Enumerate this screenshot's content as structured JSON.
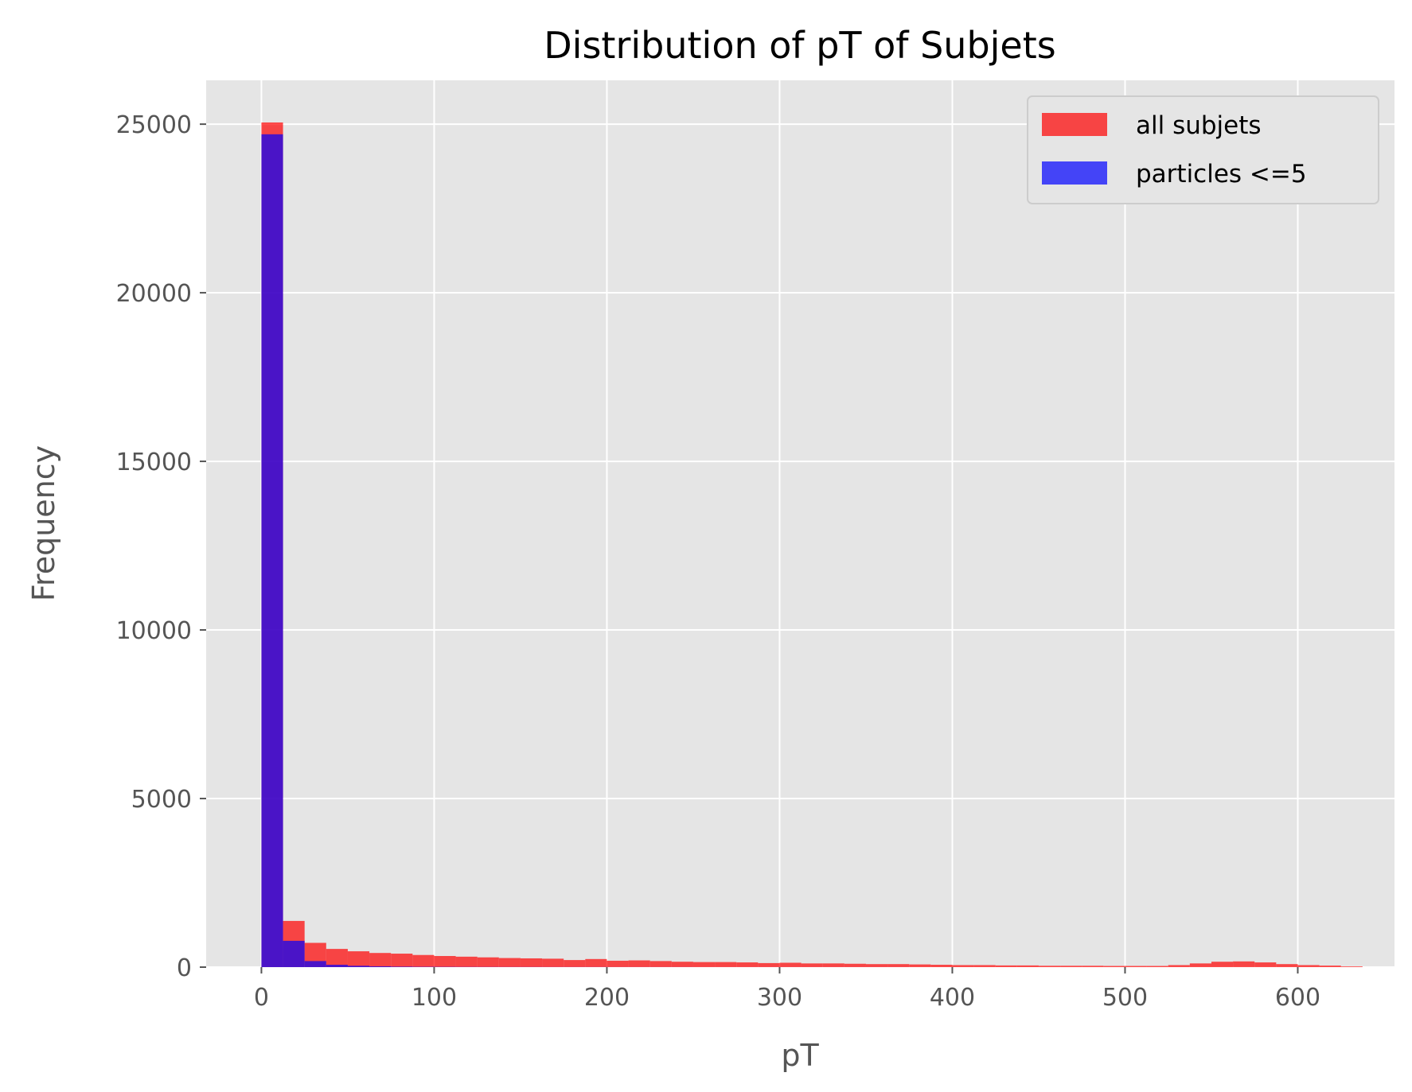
{
  "chart_data": {
    "type": "bar",
    "title": "Distribution of pT of Subjets",
    "xlabel": "pT",
    "ylabel": "Frequency",
    "xlim": [
      -32,
      656
    ],
    "ylim": [
      0,
      26300
    ],
    "xticks": [
      0,
      100,
      200,
      300,
      400,
      500,
      600
    ],
    "yticks": [
      0,
      5000,
      10000,
      15000,
      20000,
      25000
    ],
    "grid": true,
    "legend_position": "top-right",
    "bin_width": 12.5,
    "x": [
      0,
      12.5,
      25,
      37.5,
      50,
      62.5,
      75,
      87.5,
      100,
      112.5,
      125,
      137.5,
      150,
      162.5,
      175,
      187.5,
      200,
      212.5,
      225,
      237.5,
      250,
      262.5,
      275,
      287.5,
      300,
      312.5,
      325,
      337.5,
      350,
      362.5,
      375,
      387.5,
      400,
      412.5,
      425,
      437.5,
      450,
      462.5,
      475,
      487.5,
      500,
      512.5,
      525,
      537.5,
      550,
      562.5,
      575,
      587.5,
      600,
      612.5,
      625
    ],
    "series": [
      {
        "name": "all subjets",
        "color": "#ff0000",
        "values": [
          25050,
          1370,
          720,
          540,
          470,
          420,
          400,
          360,
          330,
          310,
          290,
          270,
          260,
          250,
          210,
          240,
          190,
          200,
          180,
          160,
          150,
          150,
          140,
          120,
          130,
          110,
          110,
          100,
          90,
          90,
          80,
          70,
          60,
          60,
          50,
          50,
          40,
          40,
          40,
          35,
          35,
          35,
          60,
          110,
          160,
          170,
          140,
          90,
          60,
          45,
          20
        ]
      },
      {
        "name": "particles <=5",
        "color": "#0000ff",
        "values": [
          24700,
          780,
          180,
          70,
          40,
          25,
          15,
          10,
          8,
          6,
          5,
          4,
          4,
          3,
          3,
          3,
          2,
          2,
          2,
          2,
          1,
          1,
          1,
          1,
          1,
          1,
          1,
          1,
          1,
          1,
          0,
          0,
          0,
          0,
          0,
          0,
          0,
          0,
          0,
          0,
          0,
          0,
          0,
          0,
          0,
          0,
          0,
          0,
          0,
          0,
          0
        ]
      }
    ]
  }
}
